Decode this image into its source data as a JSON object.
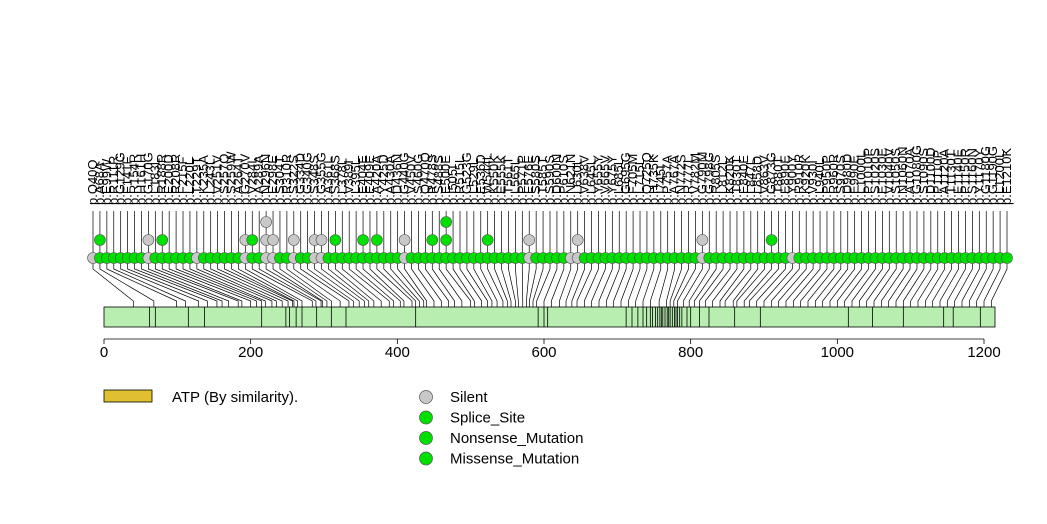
{
  "chart_data": {
    "type": "lollipop",
    "title": "",
    "xlabel": "",
    "ylabel": "",
    "xlim": [
      0,
      1215
    ],
    "protein_length": 1215,
    "axis_ticks": [
      0,
      200,
      400,
      600,
      800,
      1000,
      1200
    ],
    "colors": {
      "domain_bar": "#b8eeb0",
      "domain_region": "#e0c030",
      "Silent": "#c8c8c8",
      "Splice_Site": "#00e000",
      "Nonsense_Mutation": "#00e000",
      "Missense_Mutation": "#00e000"
    },
    "legend": {
      "domain": "ATP (By similarity).",
      "types": [
        "Silent",
        "Splice_Site",
        "Nonsense_Mutation",
        "Missense_Mutation"
      ]
    },
    "domain_positions": [
      62,
      70,
      115,
      137,
      215,
      248,
      253,
      262,
      270,
      290,
      310,
      330,
      425,
      592,
      600,
      605,
      712,
      720,
      728,
      735,
      740,
      745,
      748,
      752,
      755,
      758,
      760,
      762,
      765,
      768,
      770,
      772,
      775,
      778,
      780,
      782,
      785,
      788,
      795,
      800,
      812,
      825,
      860,
      895,
      1015,
      1048,
      1090,
      1145,
      1158,
      1195
    ],
    "mutations": [
      {
        "label": "p.Q40Q",
        "position": 40,
        "type": "Silent",
        "count": 1
      },
      {
        "label": "p.A68A",
        "position": 68,
        "type": "Splice_Site",
        "count": 2
      },
      {
        "label": "p.E99W",
        "position": 99,
        "type": "Missense_Mutation",
        "count": 1
      },
      {
        "label": "p.R111R",
        "position": 111,
        "type": "Missense_Mutation",
        "count": 1
      },
      {
        "label": "p.G129G",
        "position": 129,
        "type": "Missense_Mutation",
        "count": 1
      },
      {
        "label": "p.F141F",
        "position": 141,
        "type": "Missense_Mutation",
        "count": 1
      },
      {
        "label": "p.R154R",
        "position": 154,
        "type": "Missense_Mutation",
        "count": 1
      },
      {
        "label": "p.H161H",
        "position": 161,
        "type": "Missense_Mutation",
        "count": 1
      },
      {
        "label": "p.G170G",
        "position": 170,
        "type": "Silent",
        "count": 2
      },
      {
        "label": "p.L183L",
        "position": 183,
        "type": "Missense_Mutation",
        "count": 1
      },
      {
        "label": "p.R188R",
        "position": 188,
        "type": "Splice_Site",
        "count": 2
      },
      {
        "label": "p.E200D",
        "position": 200,
        "type": "Missense_Mutation",
        "count": 1
      },
      {
        "label": "p.R208R",
        "position": 208,
        "type": "Missense_Mutation",
        "count": 1
      },
      {
        "label": "p.F215F",
        "position": 215,
        "type": "Missense_Mutation",
        "count": 1
      },
      {
        "label": "p.L220L",
        "position": 220,
        "type": "Missense_Mutation",
        "count": 1
      },
      {
        "label": "p.T229T",
        "position": 229,
        "type": "Silent",
        "count": 1
      },
      {
        "label": "p.K235A",
        "position": 235,
        "type": "Missense_Mutation",
        "count": 1
      },
      {
        "label": "p.L243L",
        "position": 243,
        "type": "Missense_Mutation",
        "count": 1
      },
      {
        "label": "p.V251V",
        "position": 251,
        "type": "Missense_Mutation",
        "count": 1
      },
      {
        "label": "p.S257Q",
        "position": 257,
        "type": "Missense_Mutation",
        "count": 1
      },
      {
        "label": "p.S259W",
        "position": 259,
        "type": "Missense_Mutation",
        "count": 1
      },
      {
        "label": "p.A264T",
        "position": 264,
        "type": "Missense_Mutation",
        "count": 1
      },
      {
        "label": "p.G270V",
        "position": 270,
        "type": "Silent",
        "count": 2
      },
      {
        "label": "p.V284L",
        "position": 284,
        "type": "Splice_Site",
        "count": 2
      },
      {
        "label": "p.A289A",
        "position": 289,
        "type": "Missense_Mutation",
        "count": 1
      },
      {
        "label": "p.N296N",
        "position": 296,
        "type": "Silent",
        "count": 3
      },
      {
        "label": "p.E298E",
        "position": 298,
        "type": "Silent",
        "count": 2
      },
      {
        "label": "p.S304T",
        "position": 304,
        "type": "Missense_Mutation",
        "count": 1
      },
      {
        "label": "p.R310R",
        "position": 310,
        "type": "Missense_Mutation",
        "count": 1
      },
      {
        "label": "p.S322S",
        "position": 322,
        "type": "Silent",
        "count": 2
      },
      {
        "label": "p.G334D",
        "position": 334,
        "type": "Missense_Mutation",
        "count": 1
      },
      {
        "label": "p.G340G",
        "position": 340,
        "type": "Missense_Mutation",
        "count": 1
      },
      {
        "label": "p.S348S",
        "position": 348,
        "type": "Silent",
        "count": 2
      },
      {
        "label": "p.G355G",
        "position": 355,
        "type": "Silent",
        "count": 2
      },
      {
        "label": "p.A361L",
        "position": 361,
        "type": "Missense_Mutation",
        "count": 1
      },
      {
        "label": "p.S368S",
        "position": 368,
        "type": "Splice_Site",
        "count": 2
      },
      {
        "label": "p.L378L",
        "position": 378,
        "type": "Missense_Mutation",
        "count": 1
      },
      {
        "label": "p.V389I",
        "position": 389,
        "type": "Missense_Mutation",
        "count": 1
      },
      {
        "label": "p.L395L",
        "position": 395,
        "type": "Missense_Mutation",
        "count": 1
      },
      {
        "label": "p.E404E",
        "position": 404,
        "type": "Splice_Site",
        "count": 2
      },
      {
        "label": "p.E409E",
        "position": 409,
        "type": "Missense_Mutation",
        "count": 1
      },
      {
        "label": "p.A420A",
        "position": 420,
        "type": "Splice_Site",
        "count": 2
      },
      {
        "label": "p.Y425D",
        "position": 425,
        "type": "Missense_Mutation",
        "count": 1
      },
      {
        "label": "p.A430A",
        "position": 430,
        "type": "Missense_Mutation",
        "count": 1
      },
      {
        "label": "p.D436N",
        "position": 436,
        "type": "Missense_Mutation",
        "count": 1
      },
      {
        "label": "p.G440G",
        "position": 440,
        "type": "Silent",
        "count": 2
      },
      {
        "label": "p.V450V",
        "position": 450,
        "type": "Missense_Mutation",
        "count": 1
      },
      {
        "label": "p.S460G",
        "position": 460,
        "type": "Missense_Mutation",
        "count": 1
      },
      {
        "label": "p.Q470Q",
        "position": 470,
        "type": "Missense_Mutation",
        "count": 1
      },
      {
        "label": "p.R478S",
        "position": 478,
        "type": "Splice_Site",
        "count": 2
      },
      {
        "label": "p.S488S",
        "position": 488,
        "type": "Missense_Mutation",
        "count": 1
      },
      {
        "label": "p.E500E",
        "position": 500,
        "type": "Splice_Site",
        "count": 3
      },
      {
        "label": "p.I505I",
        "position": 505,
        "type": "Missense_Mutation",
        "count": 1
      },
      {
        "label": "p.R515L",
        "position": 515,
        "type": "Missense_Mutation",
        "count": 1
      },
      {
        "label": "p.G523G",
        "position": 523,
        "type": "Missense_Mutation",
        "count": 1
      },
      {
        "label": "p.L529L",
        "position": 529,
        "type": "Missense_Mutation",
        "count": 1
      },
      {
        "label": "p.E536D",
        "position": 536,
        "type": "Missense_Mutation",
        "count": 1
      },
      {
        "label": "p.W544L",
        "position": 544,
        "type": "Splice_Site",
        "count": 2
      },
      {
        "label": "p.K550K",
        "position": 550,
        "type": "Missense_Mutation",
        "count": 1
      },
      {
        "label": "p.E555K",
        "position": 555,
        "type": "Missense_Mutation",
        "count": 1
      },
      {
        "label": "p.T561T",
        "position": 561,
        "type": "Missense_Mutation",
        "count": 1
      },
      {
        "label": "p.L565L",
        "position": 565,
        "type": "Missense_Mutation",
        "count": 1
      },
      {
        "label": "p.P571P",
        "position": 571,
        "type": "Missense_Mutation",
        "count": 1
      },
      {
        "label": "p.E576E",
        "position": 576,
        "type": "Silent",
        "count": 2
      },
      {
        "label": "p.S580S",
        "position": 580,
        "type": "Missense_Mutation",
        "count": 1
      },
      {
        "label": "p.T585T",
        "position": 585,
        "type": "Missense_Mutation",
        "count": 1
      },
      {
        "label": "p.S590S",
        "position": 590,
        "type": "Missense_Mutation",
        "count": 1
      },
      {
        "label": "p.D600N",
        "position": 600,
        "type": "Missense_Mutation",
        "count": 1
      },
      {
        "label": "p.P610S",
        "position": 610,
        "type": "Missense_Mutation",
        "count": 1
      },
      {
        "label": "p.N621N",
        "position": 621,
        "type": "Silent",
        "count": 1
      },
      {
        "label": "p.L630L",
        "position": 630,
        "type": "Silent",
        "count": 2
      },
      {
        "label": "p.V638V",
        "position": 638,
        "type": "Missense_Mutation",
        "count": 1
      },
      {
        "label": "p.L645L",
        "position": 645,
        "type": "Missense_Mutation",
        "count": 1
      },
      {
        "label": "p.Y655Y",
        "position": 655,
        "type": "Missense_Mutation",
        "count": 1
      },
      {
        "label": "p.V665V",
        "position": 665,
        "type": "Missense_Mutation",
        "count": 1
      },
      {
        "label": "p.Y675Y",
        "position": 675,
        "type": "Missense_Mutation",
        "count": 1
      },
      {
        "label": "p.L685L",
        "position": 685,
        "type": "Missense_Mutation",
        "count": 1
      },
      {
        "label": "p.G695G",
        "position": 695,
        "type": "Missense_Mutation",
        "count": 1
      },
      {
        "label": "p.F705M",
        "position": 705,
        "type": "Missense_Mutation",
        "count": 1
      },
      {
        "label": "p.L715L",
        "position": 715,
        "type": "Missense_Mutation",
        "count": 1
      },
      {
        "label": "p.Q725Q",
        "position": 725,
        "type": "Missense_Mutation",
        "count": 1
      },
      {
        "label": "p.H735K",
        "position": 735,
        "type": "Missense_Mutation",
        "count": 1
      },
      {
        "label": "p.I745I",
        "position": 745,
        "type": "Missense_Mutation",
        "count": 1
      },
      {
        "label": "p.P757A",
        "position": 757,
        "type": "Missense_Mutation",
        "count": 1
      },
      {
        "label": "p.A767A",
        "position": 767,
        "type": "Missense_Mutation",
        "count": 1
      },
      {
        "label": "p.N772S",
        "position": 772,
        "type": "Missense_Mutation",
        "count": 1
      },
      {
        "label": "p.R777L",
        "position": 777,
        "type": "Missense_Mutation",
        "count": 1
      },
      {
        "label": "p.V782M",
        "position": 782,
        "type": "Missense_Mutation",
        "count": 1
      },
      {
        "label": "p.G790M",
        "position": 790,
        "type": "Silent",
        "count": 2
      },
      {
        "label": "p.G798G",
        "position": 798,
        "type": "Missense_Mutation",
        "count": 1
      },
      {
        "label": "p.R805S",
        "position": 805,
        "type": "Missense_Mutation",
        "count": 1
      },
      {
        "label": "p.L812L",
        "position": 812,
        "type": "Missense_Mutation",
        "count": 1
      },
      {
        "label": "p.K820K",
        "position": 820,
        "type": "Missense_Mutation",
        "count": 1
      },
      {
        "label": "p.T830T",
        "position": 830,
        "type": "Missense_Mutation",
        "count": 1
      },
      {
        "label": "p.E840E",
        "position": 840,
        "type": "Missense_Mutation",
        "count": 1
      },
      {
        "label": "p.L847L",
        "position": 847,
        "type": "Missense_Mutation",
        "count": 1
      },
      {
        "label": "p.L858D",
        "position": 858,
        "type": "Missense_Mutation",
        "count": 1
      },
      {
        "label": "p.V863V",
        "position": 863,
        "type": "Missense_Mutation",
        "count": 1
      },
      {
        "label": "p.G873G",
        "position": 873,
        "type": "Splice_Site",
        "count": 2
      },
      {
        "label": "p.T880T",
        "position": 880,
        "type": "Missense_Mutation",
        "count": 1
      },
      {
        "label": "p.E890E",
        "position": 890,
        "type": "Missense_Mutation",
        "count": 1
      },
      {
        "label": "p.Y900Y",
        "position": 900,
        "type": "Silent",
        "count": 1
      },
      {
        "label": "p.R910R",
        "position": 910,
        "type": "Missense_Mutation",
        "count": 1
      },
      {
        "label": "p.K920K",
        "position": 920,
        "type": "Missense_Mutation",
        "count": 1
      },
      {
        "label": "p.V930I",
        "position": 930,
        "type": "Missense_Mutation",
        "count": 1
      },
      {
        "label": "p.L940L",
        "position": 940,
        "type": "Missense_Mutation",
        "count": 1
      },
      {
        "label": "p.P950P",
        "position": 950,
        "type": "Missense_Mutation",
        "count": 1
      },
      {
        "label": "p.R960R",
        "position": 960,
        "type": "Missense_Mutation",
        "count": 1
      },
      {
        "label": "p.S970S",
        "position": 970,
        "type": "Missense_Mutation",
        "count": 1
      },
      {
        "label": "p.D980D",
        "position": 980,
        "type": "Missense_Mutation",
        "count": 1
      },
      {
        "label": "p.E990E",
        "position": 990,
        "type": "Missense_Mutation",
        "count": 1
      },
      {
        "label": "p.L1000L",
        "position": 1000,
        "type": "Missense_Mutation",
        "count": 1
      },
      {
        "label": "p.P1010P",
        "position": 1010,
        "type": "Missense_Mutation",
        "count": 1
      },
      {
        "label": "p.S1020S",
        "position": 1020,
        "type": "Missense_Mutation",
        "count": 1
      },
      {
        "label": "p.E1030E",
        "position": 1030,
        "type": "Missense_Mutation",
        "count": 1
      },
      {
        "label": "p.V1040V",
        "position": 1040,
        "type": "Missense_Mutation",
        "count": 1
      },
      {
        "label": "p.S1050S",
        "position": 1050,
        "type": "Missense_Mutation",
        "count": 1
      },
      {
        "label": "p.N1060N",
        "position": 1060,
        "type": "Missense_Mutation",
        "count": 1
      },
      {
        "label": "p.A1070A",
        "position": 1070,
        "type": "Missense_Mutation",
        "count": 1
      },
      {
        "label": "p.G1080G",
        "position": 1080,
        "type": "Missense_Mutation",
        "count": 1
      },
      {
        "label": "p.S1090S",
        "position": 1090,
        "type": "Missense_Mutation",
        "count": 1
      },
      {
        "label": "p.D1100D",
        "position": 1100,
        "type": "Missense_Mutation",
        "count": 1
      },
      {
        "label": "p.P1110P",
        "position": 1110,
        "type": "Missense_Mutation",
        "count": 1
      },
      {
        "label": "p.A1120A",
        "position": 1120,
        "type": "Missense_Mutation",
        "count": 1
      },
      {
        "label": "p.T1130T",
        "position": 1130,
        "type": "Missense_Mutation",
        "count": 1
      },
      {
        "label": "p.E1140E",
        "position": 1140,
        "type": "Missense_Mutation",
        "count": 1
      },
      {
        "label": "p.P1150R",
        "position": 1150,
        "type": "Missense_Mutation",
        "count": 1
      },
      {
        "label": "p.S1160N",
        "position": 1160,
        "type": "Missense_Mutation",
        "count": 1
      },
      {
        "label": "p.Y1170Y",
        "position": 1170,
        "type": "Missense_Mutation",
        "count": 1
      },
      {
        "label": "p.G1180G",
        "position": 1180,
        "type": "Missense_Mutation",
        "count": 1
      },
      {
        "label": "p.G1190G",
        "position": 1190,
        "type": "Missense_Mutation",
        "count": 1
      },
      {
        "label": "p.L1200L",
        "position": 1200,
        "type": "Missense_Mutation",
        "count": 1
      },
      {
        "label": "p.E1210K",
        "position": 1210,
        "type": "Missense_Mutation",
        "count": 1
      }
    ]
  }
}
